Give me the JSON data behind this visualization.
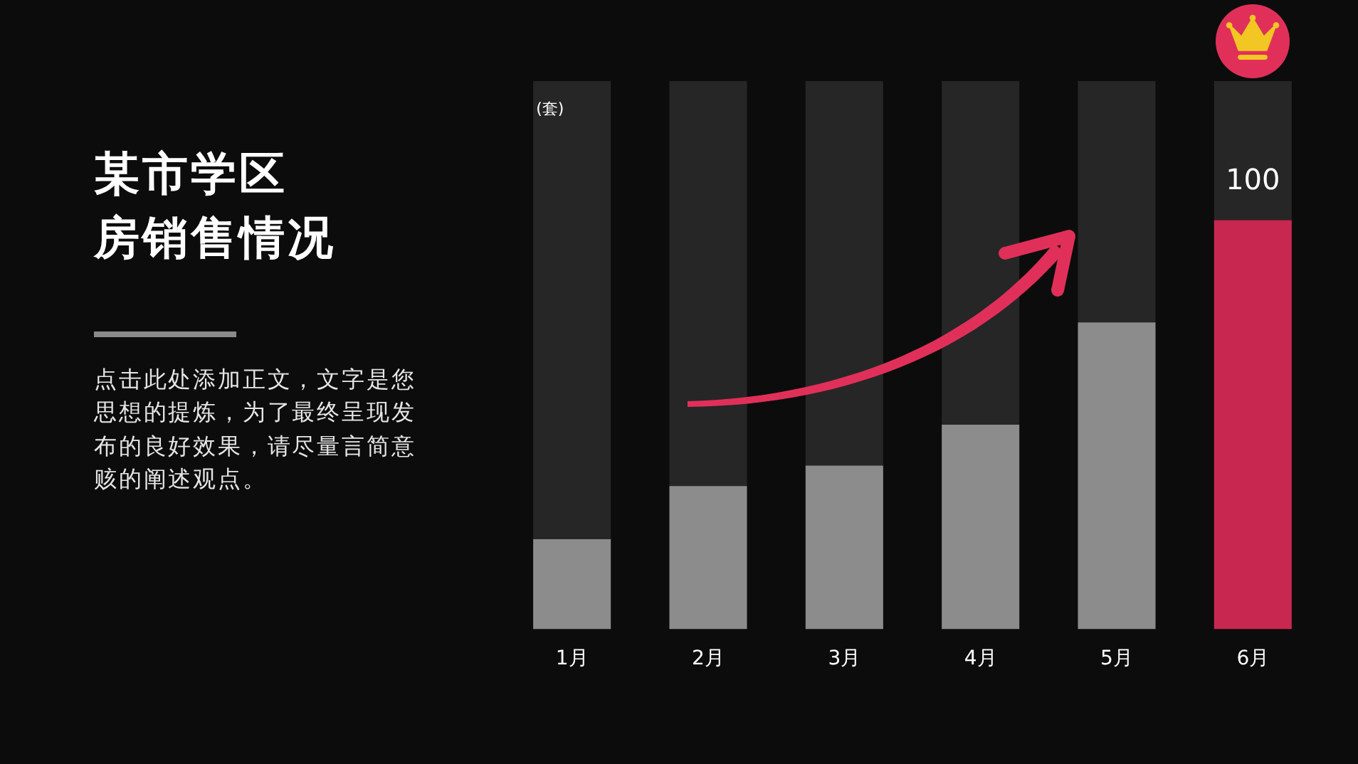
{
  "chart_data": {
    "type": "bar",
    "title": "某市学区房销售情况",
    "subtitle": "点击此处添加正文，文字是您思想的提炼，为了最终呈现发布的良好效果，请尽量言简意赅的阐述观点。",
    "ylabel": "(套)",
    "categories": [
      "1月",
      "2月",
      "3月",
      "4月",
      "5月",
      "6月"
    ],
    "stacked": true,
    "series": [
      {
        "colors": [
          "#8c8c8c",
          "#8c8c8c",
          "#8c8c8c",
          "#8c8c8c",
          "#8c8c8c",
          "#c8284f"
        ],
        "values": [
          22,
          35,
          40,
          50,
          75,
          100
        ],
        "value_labels": [
          null,
          null,
          null,
          null,
          null,
          "100"
        ]
      },
      {
        "color": "#262626",
        "values": [
          112,
          99,
          94,
          84,
          59,
          34
        ]
      }
    ],
    "tick_labels": "x"
  }
}
